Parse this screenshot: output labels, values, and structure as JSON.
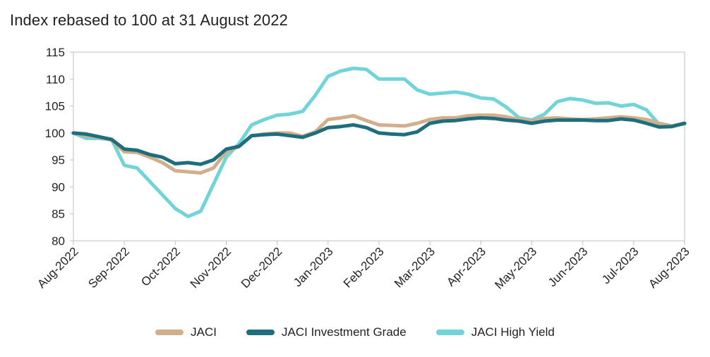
{
  "chart_data": {
    "type": "line",
    "title": "Index rebased to 100 at 31 August 2022",
    "xlabel": "",
    "ylabel": "",
    "ylim": [
      80,
      115
    ],
    "yticks": [
      80,
      85,
      90,
      95,
      100,
      105,
      110,
      115
    ],
    "xticks": [
      "Aug-2022",
      "Sep-2022",
      "Oct-2022",
      "Nov-2022",
      "Dec-2022",
      "Jan-2023",
      "Feb-2023",
      "Mar-2023",
      "Apr-2023",
      "May-2023",
      "Jun-2023",
      "Jul-2023",
      "Aug-2023"
    ],
    "grid": "none",
    "legend_position": "bottom",
    "x": [
      0,
      0.25,
      0.5,
      0.75,
      1,
      1.25,
      1.5,
      1.75,
      2,
      2.25,
      2.5,
      2.75,
      3,
      3.25,
      3.5,
      3.75,
      4,
      4.25,
      4.5,
      4.75,
      5,
      5.25,
      5.5,
      5.75,
      6,
      6.25,
      6.5,
      6.75,
      7,
      7.25,
      7.5,
      7.75,
      8,
      8.25,
      8.5,
      8.75,
      9,
      9.25,
      9.5,
      9.75,
      10,
      10.25,
      10.5,
      10.75,
      11,
      11.25,
      11.5,
      11.75,
      12
    ],
    "series": [
      {
        "name": "JACI",
        "color": "#d2ae8a",
        "values": [
          100,
          99.5,
          99.2,
          98.7,
          96.5,
          96.4,
          95.5,
          94.5,
          93,
          92.8,
          92.6,
          93.5,
          96.5,
          97.5,
          99.5,
          99.8,
          100,
          100,
          99.4,
          100.2,
          102.5,
          102.8,
          103.2,
          102.3,
          101.5,
          101.4,
          101.3,
          101.8,
          102.5,
          102.8,
          102.8,
          103.2,
          103.3,
          103.3,
          103,
          102.5,
          102.2,
          102.7,
          102.8,
          102.6,
          102.5,
          102.6,
          102.8,
          103,
          102.8,
          102.5,
          101.8,
          101.3,
          101.8
        ]
      },
      {
        "name": "JACI Investment Grade",
        "color": "#1e6f7e",
        "values": [
          100,
          99.8,
          99.3,
          98.8,
          97,
          96.8,
          96,
          95.5,
          94.3,
          94.5,
          94.2,
          95,
          97,
          97.5,
          99.5,
          99.7,
          99.8,
          99.5,
          99.2,
          100,
          101,
          101.2,
          101.5,
          101,
          100,
          99.8,
          99.7,
          100.2,
          101.8,
          102.2,
          102.3,
          102.6,
          102.8,
          102.7,
          102.4,
          102.2,
          101.8,
          102.2,
          102.4,
          102.4,
          102.4,
          102.3,
          102.3,
          102.6,
          102.4,
          101.8,
          101.1,
          101.2,
          101.8
        ]
      },
      {
        "name": "JACI High Yield",
        "color": "#71d4d8",
        "values": [
          100,
          99,
          99,
          98.8,
          94,
          93.5,
          91,
          88.5,
          86,
          84.5,
          85.5,
          90.5,
          95.5,
          98,
          101.5,
          102.5,
          103.3,
          103.5,
          104,
          107,
          110.5,
          111.5,
          112,
          111.8,
          110,
          110,
          110,
          108,
          107.2,
          107.4,
          107.6,
          107.2,
          106.5,
          106.3,
          104.8,
          102.8,
          102.4,
          103.5,
          105.8,
          106.4,
          106.1,
          105.5,
          105.6,
          105,
          105.3,
          104.3,
          101.6,
          101.3,
          101.7
        ]
      }
    ]
  }
}
